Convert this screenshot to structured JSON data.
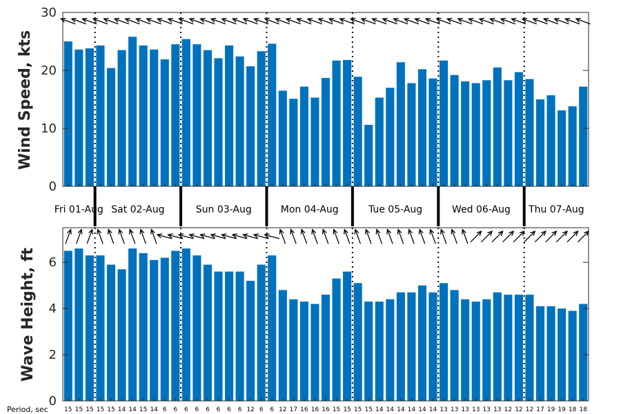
{
  "chart_data": [
    {
      "type": "bar",
      "ylabel": "Wind Speed, kts",
      "ylim": [
        0,
        30
      ],
      "yticks": [
        0,
        10,
        20,
        30
      ],
      "color": "#0072BD",
      "values": [
        25.0,
        23.6,
        23.8,
        24.3,
        20.4,
        23.5,
        25.8,
        24.3,
        23.6,
        21.9,
        24.5,
        25.4,
        24.5,
        23.5,
        22.1,
        24.3,
        22.4,
        20.7,
        23.3,
        24.6,
        16.5,
        15.1,
        17.2,
        15.3,
        18.7,
        21.7,
        21.8,
        18.9,
        10.6,
        15.3,
        17.0,
        21.4,
        17.8,
        20.2,
        18.6,
        21.7,
        19.2,
        18.1,
        17.8,
        18.3,
        20.5,
        18.3,
        19.7,
        18.5,
        15.0,
        15.7,
        13.1,
        13.8,
        17.2
      ],
      "direction_icons": "wind-direction-arrow-icon"
    },
    {
      "type": "bar",
      "ylabel": "Wave Height, ft",
      "ylim": [
        0,
        7.5
      ],
      "yticks": [
        0,
        2,
        4,
        6
      ],
      "color": "#0072BD",
      "values": [
        6.5,
        6.6,
        6.3,
        6.3,
        5.9,
        5.7,
        6.6,
        6.4,
        6.1,
        6.2,
        6.5,
        6.6,
        6.3,
        5.9,
        5.6,
        5.6,
        5.6,
        5.2,
        5.9,
        6.3,
        4.8,
        4.4,
        4.3,
        4.2,
        4.6,
        5.3,
        5.6,
        5.1,
        4.3,
        4.3,
        4.4,
        4.7,
        4.7,
        5.0,
        4.7,
        5.1,
        4.8,
        4.4,
        4.3,
        4.4,
        4.7,
        4.6,
        4.6,
        4.6,
        4.1,
        4.1,
        4.0,
        3.9,
        4.2
      ],
      "period_label": "Period, sec",
      "periods": [
        "15",
        "15",
        "15",
        "15",
        "15",
        "14",
        "14",
        "15",
        "14",
        "6",
        "6",
        "6",
        "6",
        "6",
        "6",
        "6",
        "6",
        "12",
        "6",
        "6",
        "12",
        "17",
        "16",
        "16",
        "16",
        "15",
        "15",
        "15",
        "15",
        "14",
        "14",
        "14",
        "14",
        "14",
        "14",
        "13",
        "13",
        "13",
        "13",
        "13",
        "13",
        "12",
        "12",
        "12",
        "17",
        "19",
        "19",
        "18",
        "18"
      ],
      "direction_icons": "wave-direction-arrow-icon"
    }
  ],
  "days": [
    "Fri 01-Aug",
    "Sat 02-Aug",
    "Sun 03-Aug",
    "Mon 04-Aug",
    "Tue 05-Aug",
    "Wed 06-Aug",
    "Thu 07-Aug"
  ],
  "day_starts": [
    3,
    11,
    19,
    27,
    35,
    43
  ]
}
